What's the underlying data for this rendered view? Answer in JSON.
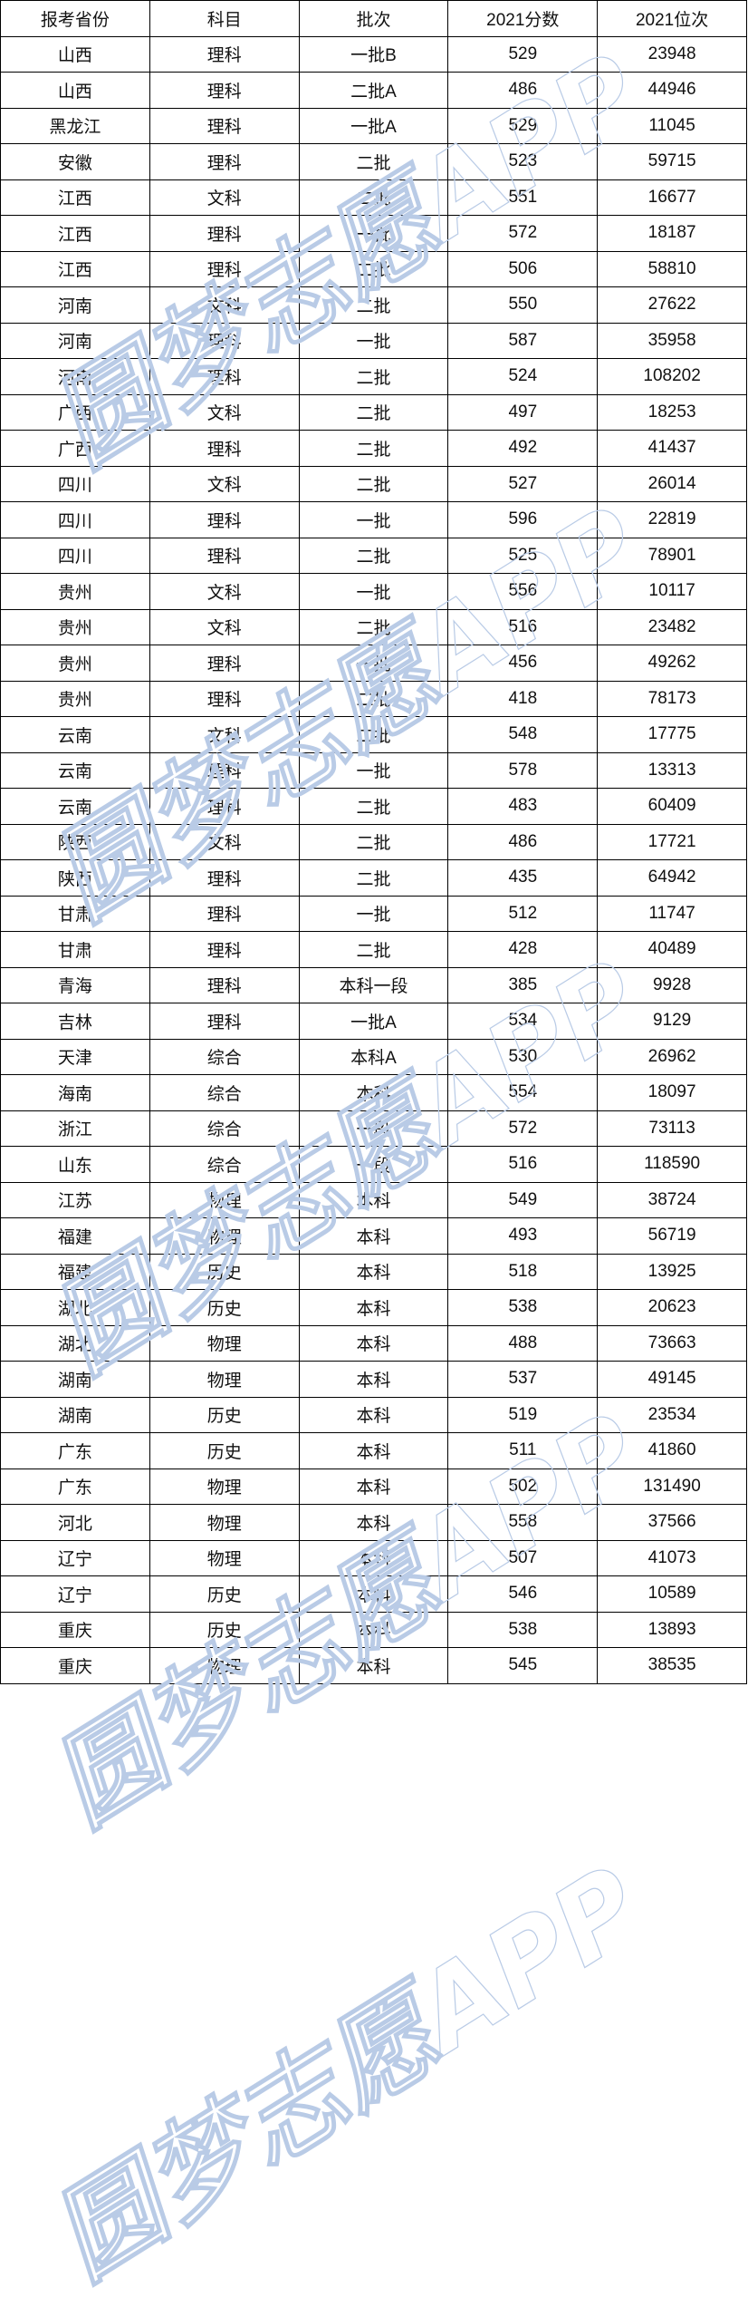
{
  "watermark": "圆梦志愿APP",
  "headers": [
    "报考省份",
    "科目",
    "批次",
    "2021分数",
    "2021位次"
  ],
  "rows": [
    [
      "山西",
      "理科",
      "一批B",
      "529",
      "23948"
    ],
    [
      "山西",
      "理科",
      "二批A",
      "486",
      "44946"
    ],
    [
      "黑龙江",
      "理科",
      "一批A",
      "529",
      "11045"
    ],
    [
      "安徽",
      "理科",
      "二批",
      "523",
      "59715"
    ],
    [
      "江西",
      "文科",
      "二批",
      "551",
      "16677"
    ],
    [
      "江西",
      "理科",
      "一批",
      "572",
      "18187"
    ],
    [
      "江西",
      "理科",
      "二批",
      "506",
      "58810"
    ],
    [
      "河南",
      "文科",
      "二批",
      "550",
      "27622"
    ],
    [
      "河南",
      "理科",
      "一批",
      "587",
      "35958"
    ],
    [
      "河南",
      "理科",
      "二批",
      "524",
      "108202"
    ],
    [
      "广西",
      "文科",
      "二批",
      "497",
      "18253"
    ],
    [
      "广西",
      "理科",
      "二批",
      "492",
      "41437"
    ],
    [
      "四川",
      "文科",
      "二批",
      "527",
      "26014"
    ],
    [
      "四川",
      "理科",
      "一批",
      "596",
      "22819"
    ],
    [
      "四川",
      "理科",
      "二批",
      "525",
      "78901"
    ],
    [
      "贵州",
      "文科",
      "一批",
      "556",
      "10117"
    ],
    [
      "贵州",
      "文科",
      "二批",
      "516",
      "23482"
    ],
    [
      "贵州",
      "理科",
      "一批",
      "456",
      "49262"
    ],
    [
      "贵州",
      "理科",
      "二批",
      "418",
      "78173"
    ],
    [
      "云南",
      "文科",
      "二批",
      "548",
      "17775"
    ],
    [
      "云南",
      "理科",
      "一批",
      "578",
      "13313"
    ],
    [
      "云南",
      "理科",
      "二批",
      "483",
      "60409"
    ],
    [
      "陕西",
      "文科",
      "二批",
      "486",
      "17721"
    ],
    [
      "陕西",
      "理科",
      "二批",
      "435",
      "64942"
    ],
    [
      "甘肃",
      "理科",
      "一批",
      "512",
      "11747"
    ],
    [
      "甘肃",
      "理科",
      "二批",
      "428",
      "40489"
    ],
    [
      "青海",
      "理科",
      "本科一段",
      "385",
      "9928"
    ],
    [
      "吉林",
      "理科",
      "一批A",
      "534",
      "9129"
    ],
    [
      "天津",
      "综合",
      "本科A",
      "530",
      "26962"
    ],
    [
      "海南",
      "综合",
      "本科",
      "554",
      "18097"
    ],
    [
      "浙江",
      "综合",
      "一段",
      "572",
      "73113"
    ],
    [
      "山东",
      "综合",
      "一段",
      "516",
      "118590"
    ],
    [
      "江苏",
      "物理",
      "本科",
      "549",
      "38724"
    ],
    [
      "福建",
      "物理",
      "本科",
      "493",
      "56719"
    ],
    [
      "福建",
      "历史",
      "本科",
      "518",
      "13925"
    ],
    [
      "湖北",
      "历史",
      "本科",
      "538",
      "20623"
    ],
    [
      "湖北",
      "物理",
      "本科",
      "488",
      "73663"
    ],
    [
      "湖南",
      "物理",
      "本科",
      "537",
      "49145"
    ],
    [
      "湖南",
      "历史",
      "本科",
      "519",
      "23534"
    ],
    [
      "广东",
      "历史",
      "本科",
      "511",
      "41860"
    ],
    [
      "广东",
      "物理",
      "本科",
      "502",
      "131490"
    ],
    [
      "河北",
      "物理",
      "本科",
      "558",
      "37566"
    ],
    [
      "辽宁",
      "物理",
      "本科",
      "507",
      "41073"
    ],
    [
      "辽宁",
      "历史",
      "本科",
      "546",
      "10589"
    ],
    [
      "重庆",
      "历史",
      "本科",
      "538",
      "13893"
    ],
    [
      "重庆",
      "物理",
      "本科",
      "545",
      "38535"
    ]
  ]
}
